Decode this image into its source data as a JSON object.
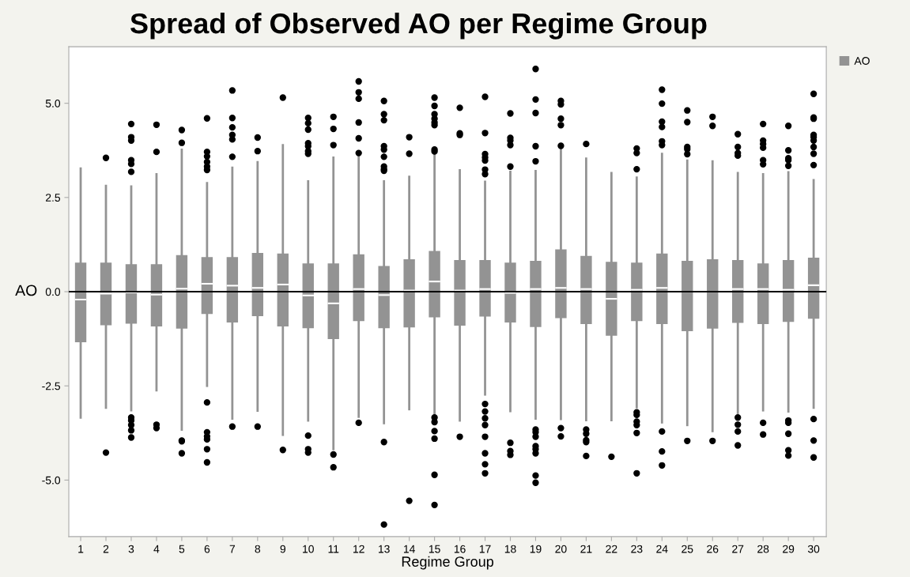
{
  "chart_data": {
    "type": "box",
    "title": "Spread of Observed AO per Regime Group",
    "xlabel": "Regime Group",
    "ylabel": "AO",
    "categories": [
      "1",
      "2",
      "3",
      "4",
      "5",
      "6",
      "7",
      "8",
      "9",
      "10",
      "11",
      "12",
      "13",
      "14",
      "15",
      "16",
      "17",
      "18",
      "19",
      "20",
      "21",
      "22",
      "23",
      "24",
      "25",
      "26",
      "27",
      "28",
      "29",
      "30"
    ],
    "ylim": [
      -6.5,
      6.5
    ],
    "yticks": [
      {
        "value": -5,
        "label": "-5.0"
      },
      {
        "value": -2.5,
        "label": "-2.5"
      },
      {
        "value": 0,
        "label": "0.0"
      },
      {
        "value": 2.5,
        "label": "2.5"
      },
      {
        "value": 5,
        "label": "5.0"
      }
    ],
    "ref_lines": [
      {
        "axis": "y",
        "value": 0,
        "color": "#000000"
      }
    ],
    "legend": "top right",
    "series": [
      {
        "name": "AO",
        "color": "#939393",
        "boxes": [
          {
            "low": -3.34,
            "q1": -1.34,
            "median": -0.21,
            "q3": 0.77,
            "high": 3.27
          },
          {
            "low": -3.08,
            "q1": -0.89,
            "median": -0.05,
            "q3": 0.77,
            "high": 2.81,
            "outliers": [
              3.55,
              -4.27
            ]
          },
          {
            "low": -3.15,
            "q1": -0.85,
            "median": -0.02,
            "q3": 0.73,
            "high": 2.79,
            "outliers": [
              4.45,
              4.1,
              4.01,
              3.49,
              3.39,
              3.18,
              -3.34,
              -3.42,
              -3.54,
              -3.68,
              -3.87
            ]
          },
          {
            "low": -2.62,
            "q1": -0.92,
            "median": -0.08,
            "q3": 0.73,
            "high": 3.12,
            "outliers": [
              4.43,
              3.71,
              -3.53,
              -3.62
            ]
          },
          {
            "low": -3.66,
            "q1": -0.98,
            "median": 0.08,
            "q3": 0.97,
            "high": 3.77,
            "outliers": [
              4.29,
              3.95,
              -3.95,
              -3.97,
              -4.29
            ]
          },
          {
            "low": -2.5,
            "q1": -0.59,
            "median": 0.21,
            "q3": 0.92,
            "high": 2.88,
            "outliers": [
              4.6,
              3.71,
              3.59,
              3.44,
              3.32,
              3.23,
              -2.94,
              -3.73,
              -3.84,
              -3.92,
              -4.18,
              -4.53
            ]
          },
          {
            "low": -3.37,
            "q1": -0.82,
            "median": 0.16,
            "q3": 0.92,
            "high": 3.29,
            "outliers": [
              5.34,
              4.61,
              4.36,
              4.16,
              4.04,
              3.58,
              -3.58
            ]
          },
          {
            "low": -3.16,
            "q1": -0.65,
            "median": 0.1,
            "q3": 1.03,
            "high": 3.44,
            "outliers": [
              4.09,
              3.73,
              -3.58
            ]
          },
          {
            "low": -3.8,
            "q1": -0.92,
            "median": 0.19,
            "q3": 1.01,
            "high": 3.89,
            "outliers": [
              5.15,
              -4.2
            ]
          },
          {
            "low": -3.42,
            "q1": -0.97,
            "median": -0.1,
            "q3": 0.75,
            "high": 2.93,
            "outliers": [
              4.61,
              4.47,
              4.3,
              3.94,
              3.86,
              3.73,
              3.66,
              -3.82,
              -4.18,
              -4.27
            ]
          },
          {
            "low": -4.18,
            "q1": -1.26,
            "median": -0.31,
            "q3": 0.75,
            "high": 3.56,
            "outliers": [
              4.64,
              4.32,
              3.89,
              -4.32,
              -4.66
            ]
          },
          {
            "low": -3.32,
            "q1": -0.78,
            "median": 0.07,
            "q3": 0.99,
            "high": 3.61,
            "outliers": [
              5.58,
              5.29,
              5.12,
              4.49,
              4.07,
              3.68,
              -3.48
            ]
          },
          {
            "low": -3.49,
            "q1": -0.97,
            "median": -0.09,
            "q3": 0.68,
            "high": 2.93,
            "outliers": [
              5.06,
              4.71,
              4.55,
              3.86,
              3.77,
              3.58,
              3.32,
              3.25,
              3.21,
              -3.99,
              -6.18
            ]
          },
          {
            "low": -3.12,
            "q1": -0.95,
            "median": 0.03,
            "q3": 0.86,
            "high": 3.05,
            "outliers": [
              4.1,
              3.66,
              -5.55
            ]
          },
          {
            "low": -3.39,
            "q1": -0.68,
            "median": 0.27,
            "q3": 1.08,
            "high": 3.63,
            "outliers": [
              5.15,
              4.93,
              4.71,
              4.59,
              4.49,
              4.42,
              3.77,
              3.72,
              -3.34,
              -3.46,
              -3.7,
              -3.9,
              -4.86,
              -5.66
            ]
          },
          {
            "low": -3.42,
            "q1": -0.9,
            "median": 0.03,
            "q3": 0.84,
            "high": 3.22,
            "outliers": [
              4.88,
              4.2,
              4.16,
              -3.85
            ]
          },
          {
            "low": -2.73,
            "q1": -0.66,
            "median": 0.07,
            "q3": 0.84,
            "high": 2.92,
            "outliers": [
              5.17,
              4.21,
              3.65,
              3.56,
              3.48,
              3.24,
              3.12,
              -2.98,
              -3.18,
              -3.36,
              -3.54,
              -3.85,
              -4.29,
              -4.58,
              -4.82
            ]
          },
          {
            "low": -3.17,
            "q1": -0.82,
            "median": -0.03,
            "q3": 0.77,
            "high": 3.18,
            "outliers": [
              4.73,
              4.08,
              4.01,
              3.89,
              3.32,
              -4.01,
              -4.23,
              -4.33
            ]
          },
          {
            "low": -3.37,
            "q1": -0.94,
            "median": 0.07,
            "q3": 0.82,
            "high": 3.2,
            "outliers": [
              5.91,
              5.1,
              4.74,
              3.86,
              3.46,
              -3.66,
              -3.73,
              -3.85,
              -4.1,
              -4.18,
              -4.29,
              -4.88,
              -5.07
            ]
          },
          {
            "low": -3.38,
            "q1": -0.7,
            "median": 0.1,
            "q3": 1.12,
            "high": 3.8,
            "outliers": [
              5.06,
              4.97,
              4.59,
              4.42,
              3.87,
              -3.62,
              -3.84
            ]
          },
          {
            "low": -3.41,
            "q1": -0.86,
            "median": 0.07,
            "q3": 0.95,
            "high": 3.53,
            "outliers": [
              3.92,
              -3.66,
              -3.77,
              -3.94,
              -3.99,
              -4.36
            ]
          },
          {
            "low": -3.41,
            "q1": -1.17,
            "median": -0.19,
            "q3": 0.79,
            "high": 3.15,
            "outliers": [
              -4.38
            ]
          },
          {
            "low": -3.07,
            "q1": -0.78,
            "median": 0.05,
            "q3": 0.77,
            "high": 3.03,
            "outliers": [
              3.8,
              3.68,
              3.25,
              -3.2,
              -3.27,
              -3.45,
              -3.54,
              -3.75,
              -4.82
            ]
          },
          {
            "low": -3.47,
            "q1": -0.86,
            "median": 0.1,
            "q3": 1.01,
            "high": 3.66,
            "outliers": [
              5.36,
              4.99,
              4.51,
              4.37,
              3.99,
              3.89,
              -3.71,
              -4.24,
              -4.61
            ]
          },
          {
            "low": -3.54,
            "q1": -1.05,
            "median": 0.0,
            "q3": 0.82,
            "high": 3.48,
            "outliers": [
              4.81,
              4.5,
              3.84,
              3.78,
              3.65,
              -3.96
            ]
          },
          {
            "low": -3.7,
            "q1": -0.98,
            "median": 0.0,
            "q3": 0.86,
            "high": 3.46,
            "outliers": [
              4.64,
              4.4,
              -3.96
            ]
          },
          {
            "low": -3.22,
            "q1": -0.83,
            "median": 0.07,
            "q3": 0.84,
            "high": 3.15,
            "outliers": [
              4.18,
              3.84,
              3.68,
              3.61,
              -3.34,
              -3.53,
              -3.71,
              -4.08
            ]
          },
          {
            "low": -3.15,
            "q1": -0.86,
            "median": 0.07,
            "q3": 0.75,
            "high": 3.12,
            "outliers": [
              4.45,
              4.01,
              3.92,
              3.82,
              3.49,
              3.38,
              -3.48,
              -3.79
            ]
          },
          {
            "low": -3.18,
            "q1": -0.8,
            "median": 0.05,
            "q3": 0.84,
            "high": 3.17,
            "outliers": [
              4.4,
              3.75,
              3.54,
              3.49,
              3.34,
              -3.42,
              -3.48,
              -3.77,
              -4.21,
              -4.35
            ]
          },
          {
            "low": -3.08,
            "q1": -0.72,
            "median": 0.17,
            "q3": 0.9,
            "high": 2.96,
            "outliers": [
              5.25,
              4.62,
              4.59,
              4.16,
              4.1,
              4.01,
              3.84,
              3.66,
              3.36,
              -3.38,
              -3.95,
              -4.4
            ]
          }
        ]
      }
    ]
  }
}
